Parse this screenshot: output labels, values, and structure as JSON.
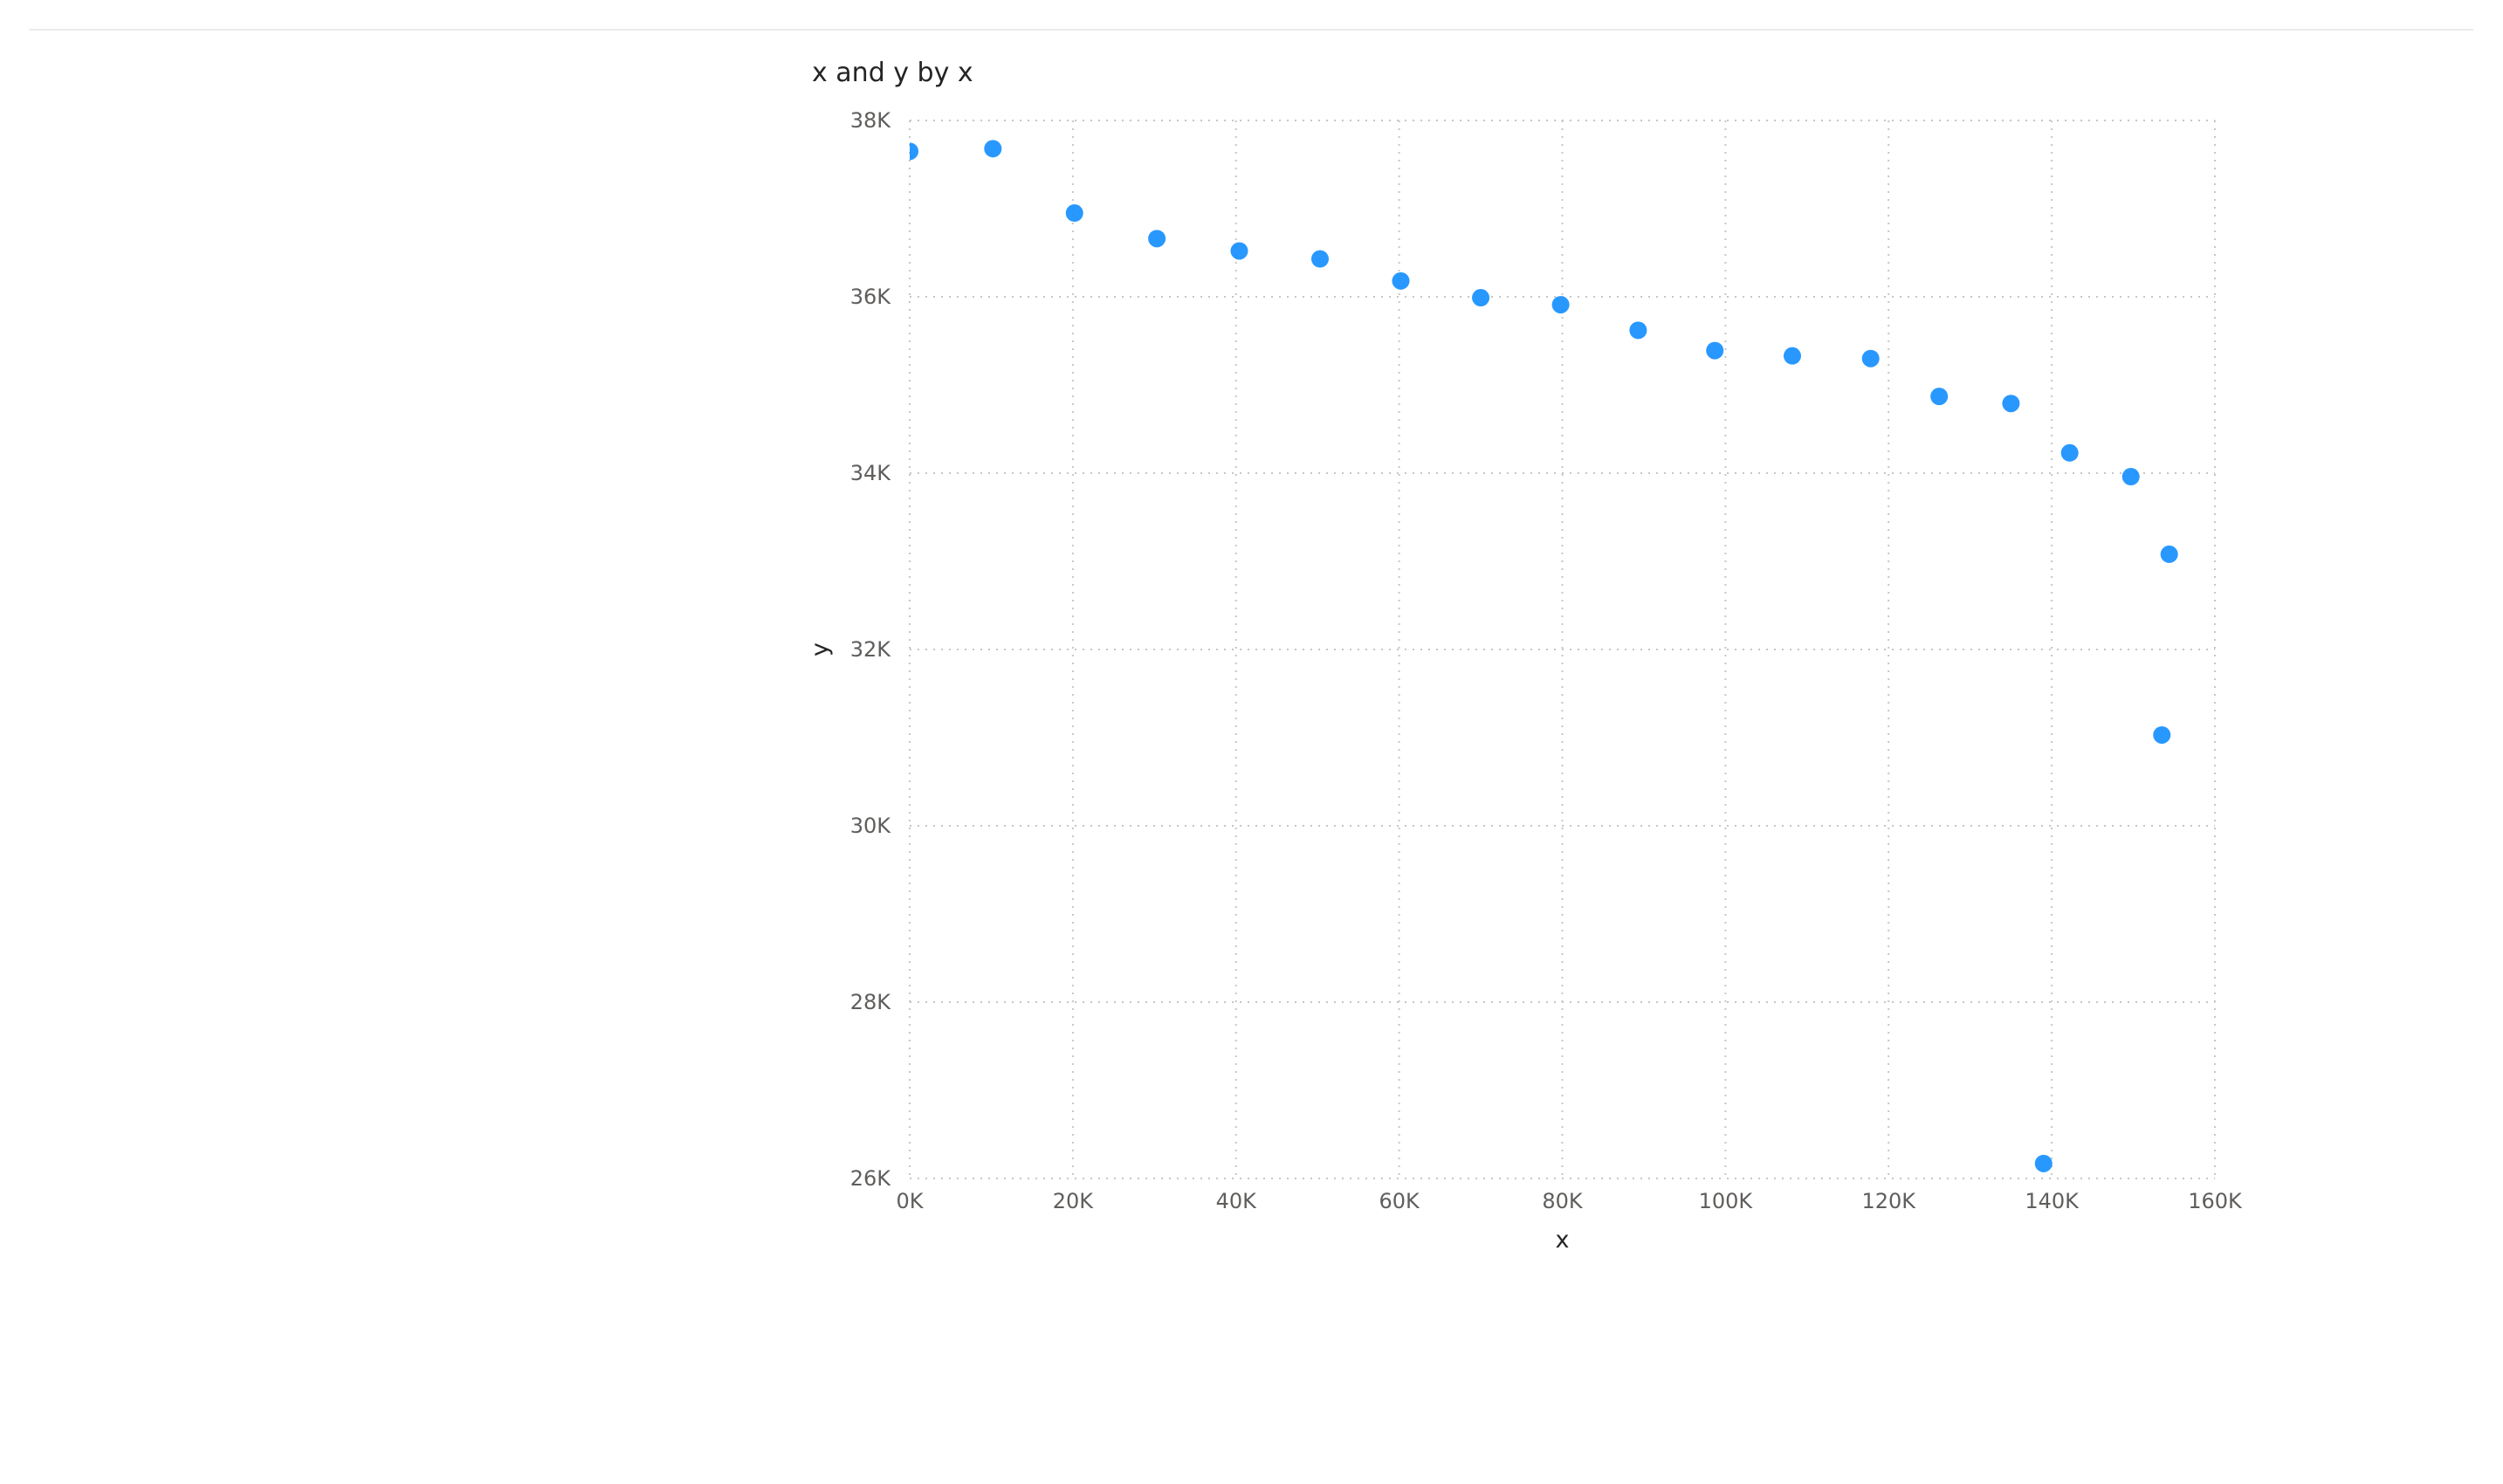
{
  "chart_data": {
    "type": "scatter",
    "title": "x and y by x",
    "xlabel": "x",
    "ylabel": "y",
    "xlim": [
      0,
      160000
    ],
    "ylim": [
      26000,
      38000
    ],
    "x_ticks": [
      0,
      20000,
      40000,
      60000,
      80000,
      100000,
      120000,
      140000,
      160000
    ],
    "x_tick_labels": [
      "0K",
      "20K",
      "40K",
      "60K",
      "80K",
      "100K",
      "120K",
      "140K",
      "160K"
    ],
    "y_ticks": [
      26000,
      28000,
      30000,
      32000,
      34000,
      36000,
      38000
    ],
    "y_tick_labels": [
      "26K",
      "28K",
      "30K",
      "32K",
      "34K",
      "36K",
      "38K"
    ],
    "grid": true,
    "grid_style": "dotted",
    "marker_color": "#118DFF",
    "points": [
      {
        "x": 0,
        "y": 37650
      },
      {
        "x": 10200,
        "y": 37680
      },
      {
        "x": 20200,
        "y": 36950
      },
      {
        "x": 30300,
        "y": 36660
      },
      {
        "x": 40400,
        "y": 36520
      },
      {
        "x": 50300,
        "y": 36430
      },
      {
        "x": 60200,
        "y": 36180
      },
      {
        "x": 70000,
        "y": 35990
      },
      {
        "x": 79800,
        "y": 35910
      },
      {
        "x": 89300,
        "y": 35620
      },
      {
        "x": 98700,
        "y": 35390
      },
      {
        "x": 108200,
        "y": 35330
      },
      {
        "x": 117800,
        "y": 35300
      },
      {
        "x": 126200,
        "y": 34870
      },
      {
        "x": 135000,
        "y": 34790
      },
      {
        "x": 142200,
        "y": 34230
      },
      {
        "x": 149700,
        "y": 33960
      },
      {
        "x": 154400,
        "y": 33080
      },
      {
        "x": 153500,
        "y": 31030
      },
      {
        "x": 139000,
        "y": 26170
      }
    ]
  }
}
